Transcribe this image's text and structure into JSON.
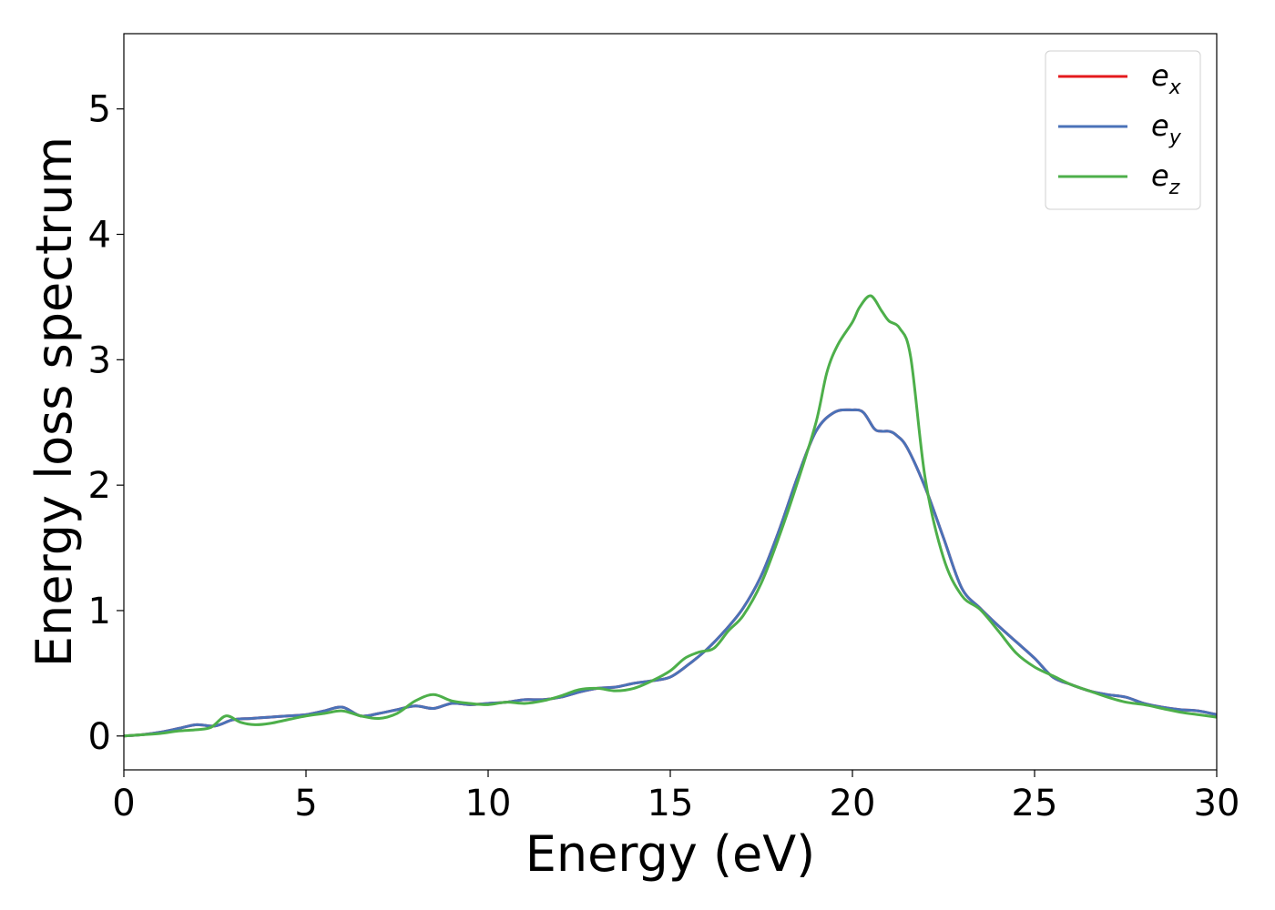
{
  "chart_data": {
    "type": "line",
    "xlabel": "Energy (eV)",
    "ylabel": "Energy loss spectrum",
    "xlim": [
      0,
      30
    ],
    "ylim": [
      -0.27,
      5.6
    ],
    "xticks": [
      0,
      5,
      10,
      15,
      20,
      25,
      30
    ],
    "yticks": [
      0,
      1,
      2,
      3,
      4,
      5
    ],
    "grid": false,
    "legend": {
      "position": "top-right"
    },
    "series": [
      {
        "name": "e_x",
        "label_base": "e",
        "label_sub": "x",
        "color": "#e41a1c",
        "x": [
          0,
          0.5,
          1,
          1.5,
          2,
          2.5,
          3,
          3.5,
          4,
          4.5,
          5,
          5.5,
          6,
          6.5,
          7,
          7.5,
          8,
          8.5,
          9,
          9.5,
          10,
          10.5,
          11,
          11.5,
          12,
          12.5,
          13,
          13.5,
          14,
          14.5,
          15,
          15.5,
          16,
          16.5,
          17,
          17.5,
          18,
          18.5,
          19,
          19.5,
          20,
          20.3,
          20.6,
          20.8,
          21,
          21.2,
          21.5,
          22,
          22.5,
          23,
          23.5,
          24,
          24.5,
          25,
          25.5,
          26,
          26.5,
          27,
          27.5,
          28,
          28.5,
          29,
          29.5,
          30
        ],
        "y": [
          0,
          0.01,
          0.03,
          0.06,
          0.09,
          0.08,
          0.13,
          0.14,
          0.15,
          0.16,
          0.17,
          0.2,
          0.23,
          0.16,
          0.18,
          0.21,
          0.24,
          0.22,
          0.26,
          0.25,
          0.26,
          0.27,
          0.29,
          0.29,
          0.31,
          0.35,
          0.38,
          0.39,
          0.42,
          0.44,
          0.47,
          0.57,
          0.69,
          0.84,
          1.02,
          1.28,
          1.65,
          2.07,
          2.43,
          2.58,
          2.6,
          2.58,
          2.45,
          2.43,
          2.43,
          2.4,
          2.3,
          1.98,
          1.58,
          1.18,
          1.02,
          0.88,
          0.75,
          0.62,
          0.47,
          0.41,
          0.36,
          0.33,
          0.31,
          0.26,
          0.23,
          0.21,
          0.2,
          0.17
        ]
      },
      {
        "name": "e_y",
        "label_base": "e",
        "label_sub": "y",
        "color": "#4a72b8",
        "x": [
          0,
          0.5,
          1,
          1.5,
          2,
          2.5,
          3,
          3.5,
          4,
          4.5,
          5,
          5.5,
          6,
          6.5,
          7,
          7.5,
          8,
          8.5,
          9,
          9.5,
          10,
          10.5,
          11,
          11.5,
          12,
          12.5,
          13,
          13.5,
          14,
          14.5,
          15,
          15.5,
          16,
          16.5,
          17,
          17.5,
          18,
          18.5,
          19,
          19.5,
          20,
          20.3,
          20.6,
          20.8,
          21,
          21.2,
          21.5,
          22,
          22.5,
          23,
          23.5,
          24,
          24.5,
          25,
          25.5,
          26,
          26.5,
          27,
          27.5,
          28,
          28.5,
          29,
          29.5,
          30
        ],
        "y": [
          0,
          0.01,
          0.03,
          0.06,
          0.09,
          0.08,
          0.13,
          0.14,
          0.15,
          0.16,
          0.17,
          0.2,
          0.23,
          0.16,
          0.18,
          0.21,
          0.24,
          0.22,
          0.26,
          0.25,
          0.26,
          0.27,
          0.29,
          0.29,
          0.31,
          0.35,
          0.38,
          0.39,
          0.42,
          0.44,
          0.47,
          0.57,
          0.69,
          0.84,
          1.02,
          1.28,
          1.65,
          2.07,
          2.43,
          2.58,
          2.6,
          2.58,
          2.45,
          2.43,
          2.43,
          2.4,
          2.3,
          1.98,
          1.58,
          1.18,
          1.02,
          0.88,
          0.75,
          0.62,
          0.47,
          0.41,
          0.36,
          0.33,
          0.31,
          0.26,
          0.23,
          0.21,
          0.2,
          0.17
        ]
      },
      {
        "name": "e_z",
        "label_base": "e",
        "label_sub": "z",
        "color": "#4daf4a",
        "x": [
          0,
          0.5,
          1,
          1.5,
          2,
          2.4,
          2.8,
          3.2,
          3.6,
          4,
          4.5,
          5,
          5.5,
          6,
          6.5,
          7,
          7.5,
          8,
          8.5,
          9,
          9.5,
          10,
          10.5,
          11,
          11.5,
          12,
          12.5,
          13,
          13.5,
          14,
          14.5,
          15,
          15.4,
          15.8,
          16.2,
          16.6,
          17,
          17.5,
          18,
          18.5,
          19,
          19.3,
          19.6,
          20,
          20.2,
          20.5,
          20.8,
          21,
          21.3,
          21.6,
          22,
          22.5,
          23,
          23.5,
          24,
          24.5,
          25,
          25.5,
          26,
          26.5,
          27,
          27.5,
          28,
          28.5,
          29,
          29.5,
          30
        ],
        "y": [
          0,
          0.01,
          0.02,
          0.04,
          0.05,
          0.07,
          0.16,
          0.11,
          0.09,
          0.1,
          0.13,
          0.16,
          0.18,
          0.2,
          0.16,
          0.14,
          0.18,
          0.28,
          0.33,
          0.28,
          0.26,
          0.25,
          0.27,
          0.26,
          0.28,
          0.32,
          0.37,
          0.38,
          0.36,
          0.38,
          0.44,
          0.52,
          0.62,
          0.67,
          0.7,
          0.84,
          0.96,
          1.22,
          1.6,
          2.03,
          2.5,
          2.9,
          3.12,
          3.3,
          3.42,
          3.51,
          3.39,
          3.31,
          3.25,
          3.02,
          2.05,
          1.42,
          1.12,
          1.01,
          0.84,
          0.66,
          0.55,
          0.48,
          0.41,
          0.36,
          0.31,
          0.27,
          0.25,
          0.22,
          0.19,
          0.17,
          0.15
        ]
      }
    ]
  }
}
